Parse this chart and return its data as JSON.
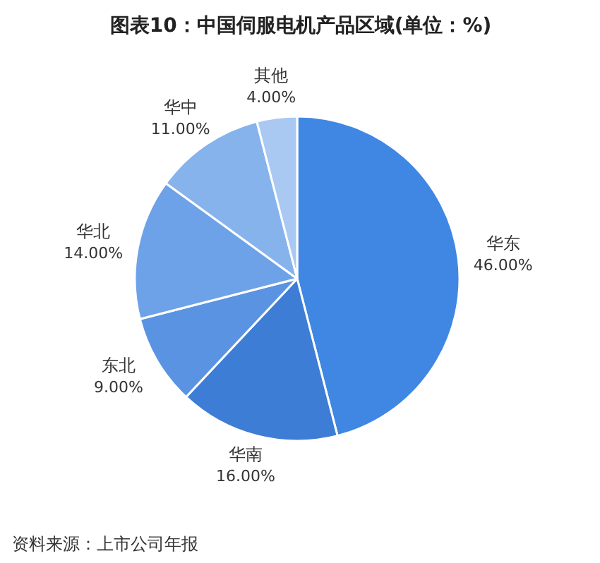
{
  "chart_data": {
    "type": "pie",
    "title": "图表10：中国伺服电机产品区域(单位：%)",
    "categories": [
      "华东",
      "华南",
      "东北",
      "华北",
      "华中",
      "其他"
    ],
    "values": [
      46,
      16,
      9,
      14,
      11,
      4
    ],
    "colors": [
      "#3f87e3",
      "#3d7dd6",
      "#5a93e2",
      "#6ea2e8",
      "#87b3ec",
      "#a9c8f2"
    ],
    "value_labels": [
      "46.00%",
      "16.00%",
      "9.00%",
      "14.00%",
      "11.00%",
      "4.00%"
    ],
    "annotations": [
      "资料来源：上市公司年报"
    ]
  }
}
